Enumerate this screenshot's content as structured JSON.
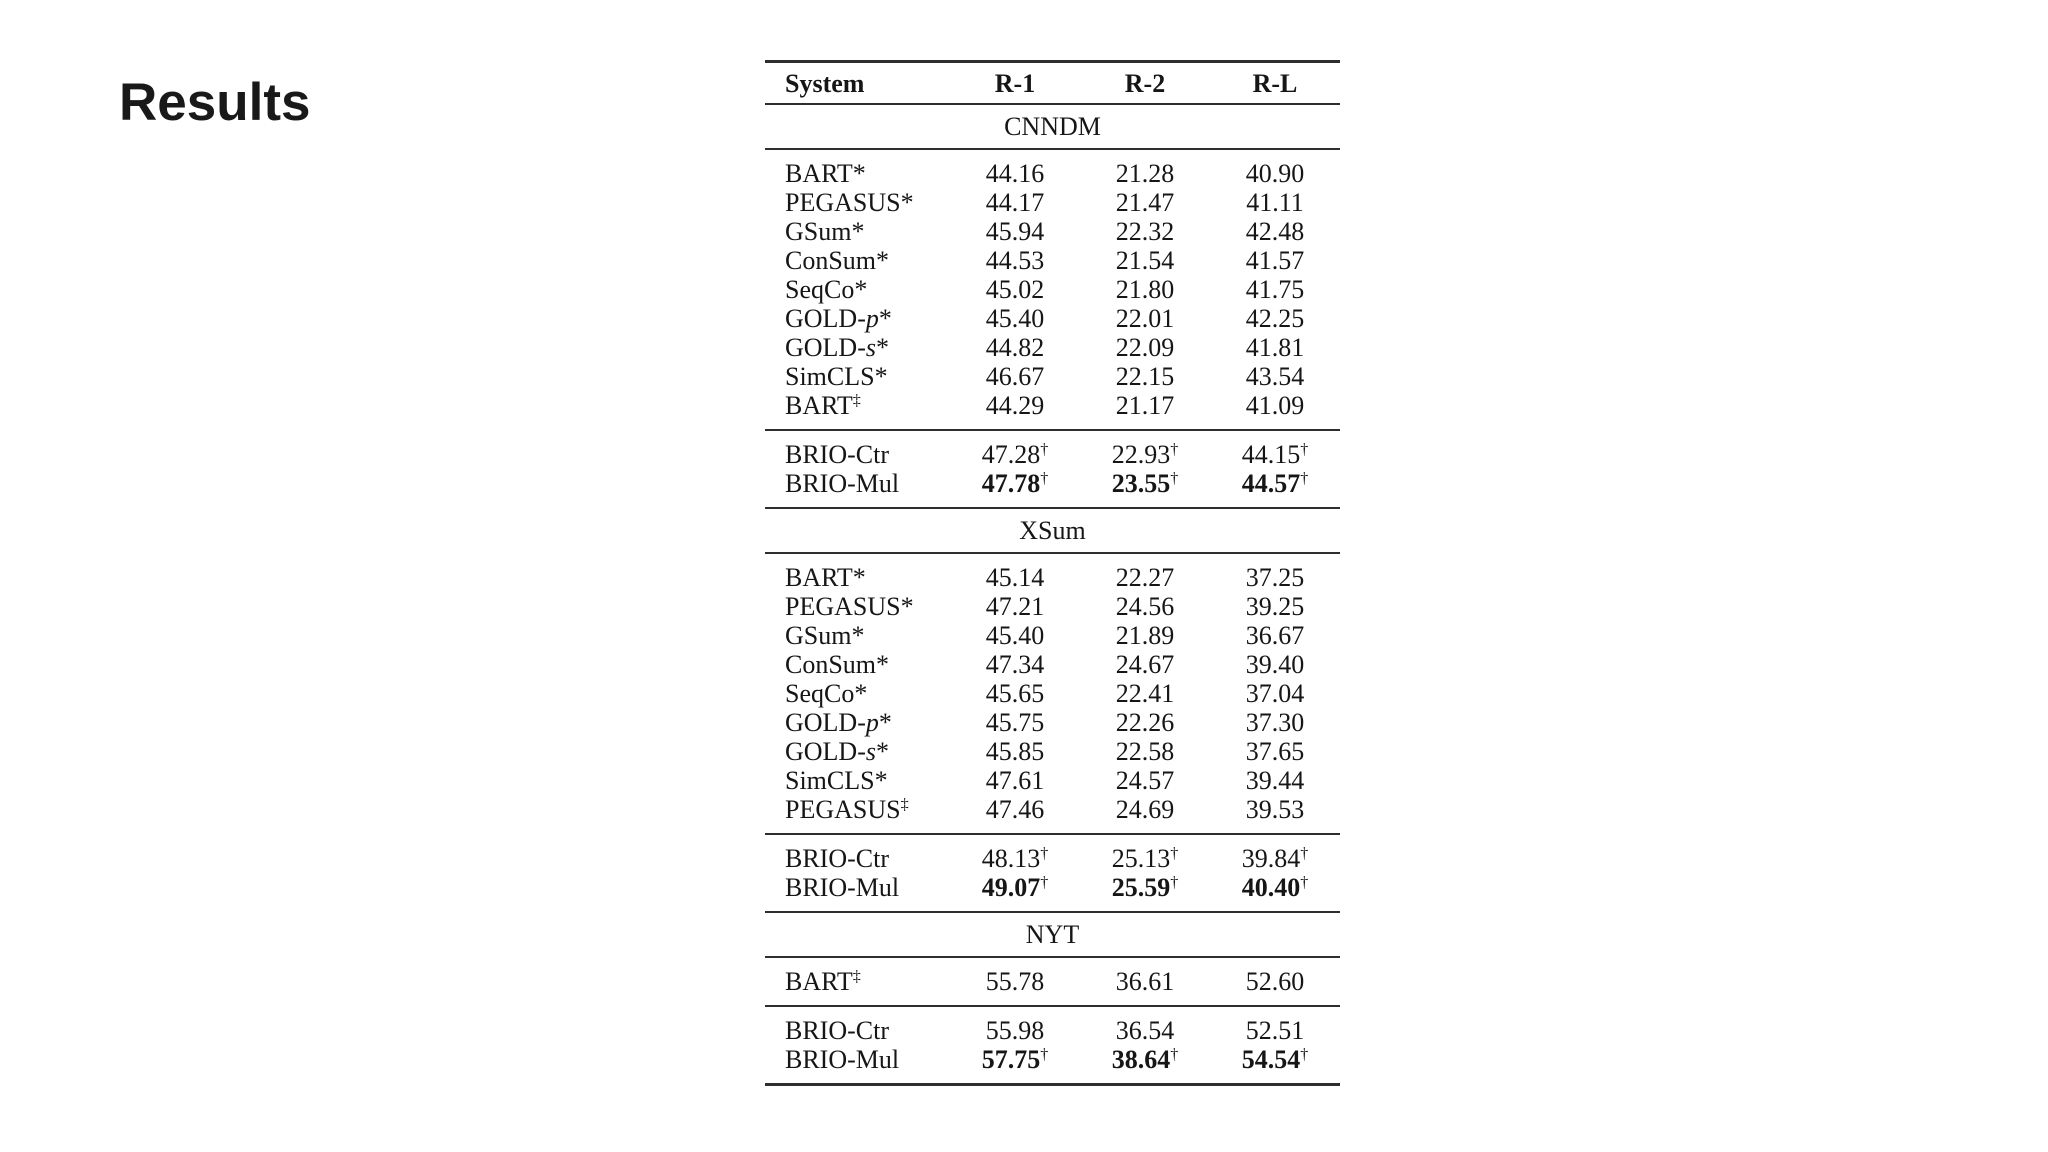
{
  "slide": {
    "title": "Results"
  },
  "table": {
    "columns": [
      "System",
      "R-1",
      "R-2",
      "R-L"
    ],
    "footnote_symbols": {
      "dagger": "†",
      "double_dagger": "‡",
      "star": "*"
    },
    "sections": [
      {
        "name": "CNNDM",
        "groups": [
          {
            "rows": [
              {
                "pre": "BART",
                "it": "",
                "post": "*",
                "sup": "",
                "bold": false,
                "cells": [
                  {
                    "v": "44.16",
                    "sup": ""
                  },
                  {
                    "v": "21.28",
                    "sup": ""
                  },
                  {
                    "v": "40.90",
                    "sup": ""
                  }
                ]
              },
              {
                "pre": "PEGASUS",
                "it": "",
                "post": "*",
                "sup": "",
                "bold": false,
                "cells": [
                  {
                    "v": "44.17",
                    "sup": ""
                  },
                  {
                    "v": "21.47",
                    "sup": ""
                  },
                  {
                    "v": "41.11",
                    "sup": ""
                  }
                ]
              },
              {
                "pre": "GSum",
                "it": "",
                "post": "*",
                "sup": "",
                "bold": false,
                "cells": [
                  {
                    "v": "45.94",
                    "sup": ""
                  },
                  {
                    "v": "22.32",
                    "sup": ""
                  },
                  {
                    "v": "42.48",
                    "sup": ""
                  }
                ]
              },
              {
                "pre": "ConSum",
                "it": "",
                "post": "*",
                "sup": "",
                "bold": false,
                "cells": [
                  {
                    "v": "44.53",
                    "sup": ""
                  },
                  {
                    "v": "21.54",
                    "sup": ""
                  },
                  {
                    "v": "41.57",
                    "sup": ""
                  }
                ]
              },
              {
                "pre": "SeqCo",
                "it": "",
                "post": "*",
                "sup": "",
                "bold": false,
                "cells": [
                  {
                    "v": "45.02",
                    "sup": ""
                  },
                  {
                    "v": "21.80",
                    "sup": ""
                  },
                  {
                    "v": "41.75",
                    "sup": ""
                  }
                ]
              },
              {
                "pre": "GOLD-",
                "it": "p",
                "post": "*",
                "sup": "",
                "bold": false,
                "cells": [
                  {
                    "v": "45.40",
                    "sup": ""
                  },
                  {
                    "v": "22.01",
                    "sup": ""
                  },
                  {
                    "v": "42.25",
                    "sup": ""
                  }
                ]
              },
              {
                "pre": "GOLD-",
                "it": "s",
                "post": "*",
                "sup": "",
                "bold": false,
                "cells": [
                  {
                    "v": "44.82",
                    "sup": ""
                  },
                  {
                    "v": "22.09",
                    "sup": ""
                  },
                  {
                    "v": "41.81",
                    "sup": ""
                  }
                ]
              },
              {
                "pre": "SimCLS",
                "it": "",
                "post": "*",
                "sup": "",
                "bold": false,
                "cells": [
                  {
                    "v": "46.67",
                    "sup": ""
                  },
                  {
                    "v": "22.15",
                    "sup": ""
                  },
                  {
                    "v": "43.54",
                    "sup": ""
                  }
                ]
              },
              {
                "pre": "BART",
                "it": "",
                "post": "",
                "sup": "‡",
                "bold": false,
                "cells": [
                  {
                    "v": "44.29",
                    "sup": ""
                  },
                  {
                    "v": "21.17",
                    "sup": ""
                  },
                  {
                    "v": "41.09",
                    "sup": ""
                  }
                ]
              }
            ]
          },
          {
            "rows": [
              {
                "pre": "BRIO-Ctr",
                "it": "",
                "post": "",
                "sup": "",
                "bold": false,
                "cells": [
                  {
                    "v": "47.28",
                    "sup": "†"
                  },
                  {
                    "v": "22.93",
                    "sup": "†"
                  },
                  {
                    "v": "44.15",
                    "sup": "†"
                  }
                ]
              },
              {
                "pre": "BRIO-Mul",
                "it": "",
                "post": "",
                "sup": "",
                "bold": true,
                "cells": [
                  {
                    "v": "47.78",
                    "sup": "†"
                  },
                  {
                    "v": "23.55",
                    "sup": "†"
                  },
                  {
                    "v": "44.57",
                    "sup": "†"
                  }
                ]
              }
            ]
          }
        ]
      },
      {
        "name": "XSum",
        "groups": [
          {
            "rows": [
              {
                "pre": "BART",
                "it": "",
                "post": "*",
                "sup": "",
                "bold": false,
                "cells": [
                  {
                    "v": "45.14",
                    "sup": ""
                  },
                  {
                    "v": "22.27",
                    "sup": ""
                  },
                  {
                    "v": "37.25",
                    "sup": ""
                  }
                ]
              },
              {
                "pre": "PEGASUS",
                "it": "",
                "post": "*",
                "sup": "",
                "bold": false,
                "cells": [
                  {
                    "v": "47.21",
                    "sup": ""
                  },
                  {
                    "v": "24.56",
                    "sup": ""
                  },
                  {
                    "v": "39.25",
                    "sup": ""
                  }
                ]
              },
              {
                "pre": "GSum",
                "it": "",
                "post": "*",
                "sup": "",
                "bold": false,
                "cells": [
                  {
                    "v": "45.40",
                    "sup": ""
                  },
                  {
                    "v": "21.89",
                    "sup": ""
                  },
                  {
                    "v": "36.67",
                    "sup": ""
                  }
                ]
              },
              {
                "pre": "ConSum",
                "it": "",
                "post": "*",
                "sup": "",
                "bold": false,
                "cells": [
                  {
                    "v": "47.34",
                    "sup": ""
                  },
                  {
                    "v": "24.67",
                    "sup": ""
                  },
                  {
                    "v": "39.40",
                    "sup": ""
                  }
                ]
              },
              {
                "pre": "SeqCo",
                "it": "",
                "post": "*",
                "sup": "",
                "bold": false,
                "cells": [
                  {
                    "v": "45.65",
                    "sup": ""
                  },
                  {
                    "v": "22.41",
                    "sup": ""
                  },
                  {
                    "v": "37.04",
                    "sup": ""
                  }
                ]
              },
              {
                "pre": "GOLD-",
                "it": "p",
                "post": "*",
                "sup": "",
                "bold": false,
                "cells": [
                  {
                    "v": "45.75",
                    "sup": ""
                  },
                  {
                    "v": "22.26",
                    "sup": ""
                  },
                  {
                    "v": "37.30",
                    "sup": ""
                  }
                ]
              },
              {
                "pre": "GOLD-",
                "it": "s",
                "post": "*",
                "sup": "",
                "bold": false,
                "cells": [
                  {
                    "v": "45.85",
                    "sup": ""
                  },
                  {
                    "v": "22.58",
                    "sup": ""
                  },
                  {
                    "v": "37.65",
                    "sup": ""
                  }
                ]
              },
              {
                "pre": "SimCLS",
                "it": "",
                "post": "*",
                "sup": "",
                "bold": false,
                "cells": [
                  {
                    "v": "47.61",
                    "sup": ""
                  },
                  {
                    "v": "24.57",
                    "sup": ""
                  },
                  {
                    "v": "39.44",
                    "sup": ""
                  }
                ]
              },
              {
                "pre": "PEGASUS",
                "it": "",
                "post": "",
                "sup": "‡",
                "bold": false,
                "cells": [
                  {
                    "v": "47.46",
                    "sup": ""
                  },
                  {
                    "v": "24.69",
                    "sup": ""
                  },
                  {
                    "v": "39.53",
                    "sup": ""
                  }
                ]
              }
            ]
          },
          {
            "rows": [
              {
                "pre": "BRIO-Ctr",
                "it": "",
                "post": "",
                "sup": "",
                "bold": false,
                "cells": [
                  {
                    "v": "48.13",
                    "sup": "†"
                  },
                  {
                    "v": "25.13",
                    "sup": "†"
                  },
                  {
                    "v": "39.84",
                    "sup": "†"
                  }
                ]
              },
              {
                "pre": "BRIO-Mul",
                "it": "",
                "post": "",
                "sup": "",
                "bold": true,
                "cells": [
                  {
                    "v": "49.07",
                    "sup": "†"
                  },
                  {
                    "v": "25.59",
                    "sup": "†"
                  },
                  {
                    "v": "40.40",
                    "sup": "†"
                  }
                ]
              }
            ]
          }
        ]
      },
      {
        "name": "NYT",
        "groups": [
          {
            "rows": [
              {
                "pre": "BART",
                "it": "",
                "post": "",
                "sup": "‡",
                "bold": false,
                "cells": [
                  {
                    "v": "55.78",
                    "sup": ""
                  },
                  {
                    "v": "36.61",
                    "sup": ""
                  },
                  {
                    "v": "52.60",
                    "sup": ""
                  }
                ]
              }
            ]
          },
          {
            "rows": [
              {
                "pre": "BRIO-Ctr",
                "it": "",
                "post": "",
                "sup": "",
                "bold": false,
                "cells": [
                  {
                    "v": "55.98",
                    "sup": ""
                  },
                  {
                    "v": "36.54",
                    "sup": ""
                  },
                  {
                    "v": "52.51",
                    "sup": ""
                  }
                ]
              },
              {
                "pre": "BRIO-Mul",
                "it": "",
                "post": "",
                "sup": "",
                "bold": true,
                "cells": [
                  {
                    "v": "57.75",
                    "sup": "†"
                  },
                  {
                    "v": "38.64",
                    "sup": "†"
                  },
                  {
                    "v": "54.54",
                    "sup": "†"
                  }
                ]
              }
            ]
          }
        ]
      }
    ]
  }
}
